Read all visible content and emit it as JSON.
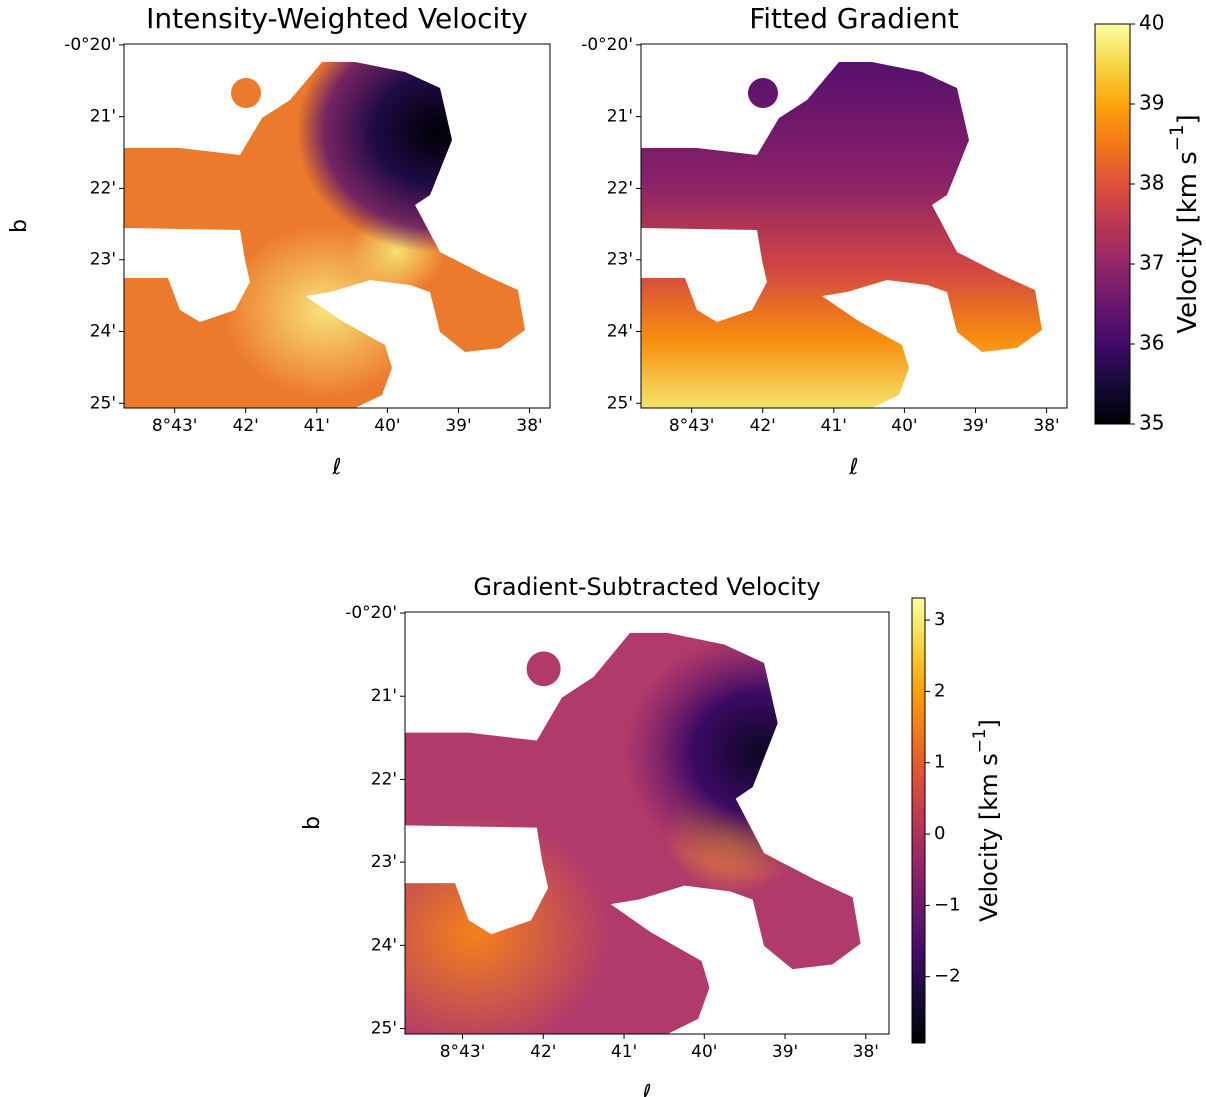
{
  "chart_data": [
    {
      "type": "image",
      "title": "Intensity-Weighted Velocity",
      "xlabel": "ℓ",
      "ylabel": "b",
      "cmap": "inferno",
      "xlim": [
        8.7286,
        8.6285
      ],
      "ylim": [
        -0.4178,
        -0.3331
      ],
      "xticks": [
        {
          "value": 8.7167,
          "label": "8°43'"
        },
        {
          "value": 8.7,
          "label": "42'"
        },
        {
          "value": 8.6833,
          "label": "41'"
        },
        {
          "value": 8.6667,
          "label": "40'"
        },
        {
          "value": 8.65,
          "label": "39'"
        },
        {
          "value": 8.6333,
          "label": "38'"
        }
      ],
      "yticks": [
        {
          "value": -0.3333,
          "label": "-0°20'"
        },
        {
          "value": -0.35,
          "label": "21'"
        },
        {
          "value": -0.3667,
          "label": "22'"
        },
        {
          "value": -0.3833,
          "label": "23'"
        },
        {
          "value": -0.4,
          "label": "24'"
        },
        {
          "value": -0.4167,
          "label": "25'"
        }
      ]
    },
    {
      "type": "image",
      "title": "Fitted Gradient",
      "xlabel": "ℓ",
      "cmap": "inferno",
      "xlim": [
        8.7286,
        8.6285
      ],
      "ylim": [
        -0.4178,
        -0.3331
      ],
      "xticks": [
        {
          "value": 8.7167,
          "label": "8°43'"
        },
        {
          "value": 8.7,
          "label": "42'"
        },
        {
          "value": 8.6833,
          "label": "41'"
        },
        {
          "value": 8.6667,
          "label": "40'"
        },
        {
          "value": 8.65,
          "label": "39'"
        },
        {
          "value": 8.6333,
          "label": "38'"
        }
      ],
      "yticks": [
        {
          "value": -0.3333,
          "label": "-0°20'"
        },
        {
          "value": -0.35,
          "label": "21'"
        },
        {
          "value": -0.3667,
          "label": "22'"
        },
        {
          "value": -0.3833,
          "label": "23'"
        },
        {
          "value": -0.4,
          "label": "24'"
        },
        {
          "value": -0.4167,
          "label": "25'"
        }
      ],
      "colorbar": {
        "label": "Velocity [km s",
        "label_sup": "−1",
        "label_end": "]",
        "clim": [
          35,
          40
        ],
        "ticks": [
          35,
          36,
          37,
          38,
          39,
          40
        ]
      }
    },
    {
      "type": "image",
      "title": "Gradient-Subtracted Velocity",
      "xlabel": "ℓ",
      "ylabel": "b",
      "cmap": "inferno",
      "xlim": [
        8.7286,
        8.6285
      ],
      "ylim": [
        -0.4178,
        -0.3331
      ],
      "xticks": [
        {
          "value": 8.7167,
          "label": "8°43'"
        },
        {
          "value": 8.7,
          "label": "42'"
        },
        {
          "value": 8.6833,
          "label": "41'"
        },
        {
          "value": 8.6667,
          "label": "40'"
        },
        {
          "value": 8.65,
          "label": "39'"
        },
        {
          "value": 8.6333,
          "label": "38'"
        }
      ],
      "yticks": [
        {
          "value": -0.3333,
          "label": "-0°20'"
        },
        {
          "value": -0.35,
          "label": "21'"
        },
        {
          "value": -0.3667,
          "label": "22'"
        },
        {
          "value": -0.3833,
          "label": "23'"
        },
        {
          "value": -0.4,
          "label": "24'"
        },
        {
          "value": -0.4167,
          "label": "25'"
        }
      ],
      "colorbar": {
        "label": "Velocity [km s",
        "label_sup": "−1",
        "label_end": "]",
        "clim": [
          -2.93,
          3.31
        ],
        "ticks": [
          {
            "value": -2,
            "label": "−2"
          },
          {
            "value": -1,
            "label": "−1"
          },
          0,
          1,
          2,
          3
        ]
      }
    }
  ]
}
